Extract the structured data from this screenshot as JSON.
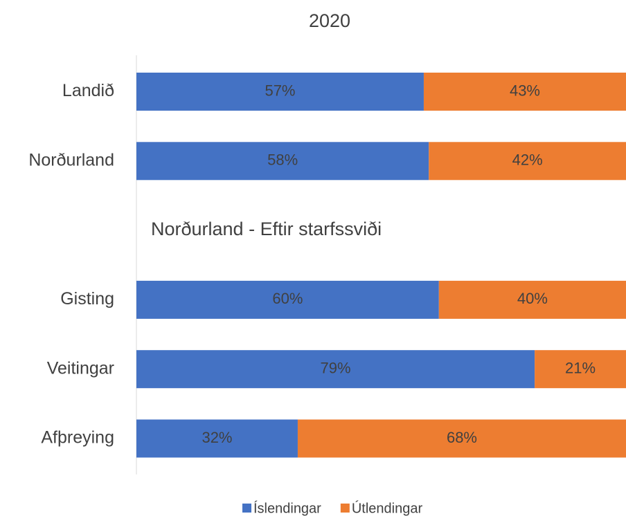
{
  "chart_data": {
    "type": "stacked_bar_horizontal",
    "title": "2020",
    "categories": [
      "Landið",
      "Norðurland",
      null,
      "Gisting",
      "Veitingar",
      "Afþreying"
    ],
    "annotation": "Norðurland - Eftir starfssviði",
    "series": [
      {
        "name": "Íslendingar",
        "color": "#4472c4",
        "values": [
          57,
          58,
          null,
          60,
          79,
          32
        ],
        "value_labels": [
          "57%",
          "58%",
          null,
          "60%",
          "79%",
          "32%"
        ]
      },
      {
        "name": "Útlendingar",
        "color": "#ed7d31",
        "values": [
          43,
          42,
          null,
          40,
          21,
          68
        ],
        "value_labels": [
          "43%",
          "42%",
          null,
          "40%",
          "21%",
          "68%"
        ]
      }
    ],
    "legend": "bottom"
  }
}
